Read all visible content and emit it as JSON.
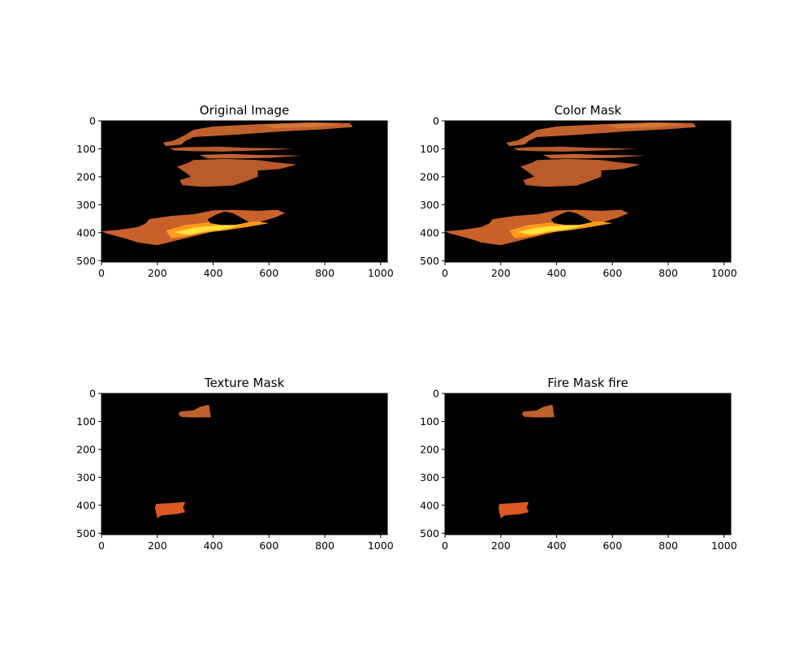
{
  "chart_data": [
    {
      "type": "image",
      "title": "Original Image",
      "xlim": [
        0,
        1024
      ],
      "ylim": [
        0,
        505
      ],
      "xticks": [
        0,
        200,
        400,
        600,
        800,
        1000
      ],
      "yticks": [
        0,
        100,
        200,
        300,
        400,
        500
      ],
      "regions": [
        {
          "pts": [
            [
              330,
              32
            ],
            [
              400,
              20
            ],
            [
              560,
              12
            ],
            [
              750,
              5
            ],
            [
              890,
              8
            ],
            [
              900,
              22
            ],
            [
              800,
              30
            ],
            [
              640,
              38
            ],
            [
              470,
              50
            ],
            [
              330,
              58
            ],
            [
              300,
              72
            ],
            [
              285,
              85
            ],
            [
              230,
              90
            ],
            [
              220,
              78
            ],
            [
              260,
              70
            ],
            [
              300,
              50
            ]
          ],
          "color": "#c0602c"
        },
        {
          "pts": [
            [
              580,
              14
            ],
            [
              760,
              8
            ],
            [
              860,
              12
            ],
            [
              760,
              22
            ],
            [
              620,
              26
            ]
          ],
          "color": "#d4783a"
        },
        {
          "pts": [
            [
              245,
              98
            ],
            [
              300,
              94
            ],
            [
              420,
              92
            ],
            [
              520,
              96
            ],
            [
              620,
              98
            ],
            [
              690,
              100
            ],
            [
              560,
              106
            ],
            [
              430,
              110
            ],
            [
              320,
              108
            ],
            [
              260,
              106
            ]
          ],
          "color": "#b85c2e"
        },
        {
          "pts": [
            [
              350,
              122
            ],
            [
              460,
              118
            ],
            [
              560,
              122
            ],
            [
              720,
              124
            ],
            [
              600,
              132
            ],
            [
              480,
              134
            ],
            [
              380,
              134
            ]
          ],
          "color": "#c16332"
        },
        {
          "pts": [
            [
              330,
              140
            ],
            [
              440,
              136
            ],
            [
              560,
              140
            ],
            [
              620,
              148
            ],
            [
              700,
              156
            ],
            [
              640,
              172
            ],
            [
              560,
              178
            ],
            [
              560,
              200
            ],
            [
              520,
              215
            ],
            [
              470,
              232
            ],
            [
              360,
              236
            ],
            [
              290,
              230
            ],
            [
              280,
              212
            ],
            [
              320,
              200
            ],
            [
              300,
              184
            ],
            [
              270,
              164
            ],
            [
              310,
              150
            ]
          ],
          "color": "#b85a2a"
        },
        {
          "pts": [
            [
              170,
              352
            ],
            [
              250,
              340
            ],
            [
              330,
              334
            ],
            [
              400,
              320
            ],
            [
              470,
              318
            ],
            [
              560,
              322
            ],
            [
              630,
              318
            ],
            [
              658,
              330
            ],
            [
              620,
              346
            ],
            [
              560,
              364
            ],
            [
              470,
              382
            ],
            [
              400,
              396
            ],
            [
              300,
              420
            ],
            [
              200,
              445
            ],
            [
              130,
              435
            ],
            [
              90,
              422
            ],
            [
              15,
              402
            ],
            [
              0,
              395
            ],
            [
              60,
              390
            ],
            [
              130,
              380
            ],
            [
              160,
              366
            ]
          ],
          "color": "#c8612a"
        },
        {
          "pts": [
            [
              230,
              392
            ],
            [
              300,
              372
            ],
            [
              400,
              362
            ],
            [
              470,
              364
            ],
            [
              560,
              360
            ],
            [
              600,
              366
            ],
            [
              520,
              380
            ],
            [
              440,
              392
            ],
            [
              370,
              400
            ],
            [
              300,
              414
            ],
            [
              250,
              420
            ]
          ],
          "color": "#ff9a1a"
        },
        {
          "pts": [
            [
              260,
              398
            ],
            [
              330,
              382
            ],
            [
              420,
              374
            ],
            [
              500,
              372
            ],
            [
              450,
              386
            ],
            [
              370,
              396
            ],
            [
              310,
              408
            ]
          ],
          "color": "#ffe23c"
        },
        {
          "pts": [
            [
              380,
              352
            ],
            [
              410,
              336
            ],
            [
              440,
              324
            ],
            [
              470,
              330
            ],
            [
              500,
              346
            ],
            [
              528,
              362
            ],
            [
              480,
              372
            ],
            [
              430,
              372
            ],
            [
              390,
              366
            ]
          ],
          "color": "#000000"
        },
        {
          "pts": [
            [
              380,
              418
            ],
            [
              420,
              412
            ],
            [
              440,
              420
            ],
            [
              400,
              428
            ]
          ],
          "color": "#000000"
        }
      ]
    },
    {
      "type": "image",
      "title": "Color Mask",
      "xlim": [
        0,
        1024
      ],
      "ylim": [
        0,
        505
      ],
      "xticks": [
        0,
        200,
        400,
        600,
        800,
        1000
      ],
      "yticks": [
        0,
        100,
        200,
        300,
        400,
        500
      ],
      "regions": [
        {
          "pts": [
            [
              330,
              32
            ],
            [
              400,
              20
            ],
            [
              560,
              12
            ],
            [
              750,
              5
            ],
            [
              890,
              8
            ],
            [
              900,
              22
            ],
            [
              800,
              30
            ],
            [
              640,
              38
            ],
            [
              470,
              50
            ],
            [
              330,
              58
            ],
            [
              300,
              72
            ],
            [
              285,
              85
            ],
            [
              230,
              90
            ],
            [
              220,
              78
            ],
            [
              260,
              70
            ],
            [
              300,
              50
            ]
          ],
          "color": "#c0602c"
        },
        {
          "pts": [
            [
              580,
              14
            ],
            [
              760,
              8
            ],
            [
              860,
              12
            ],
            [
              760,
              22
            ],
            [
              620,
              26
            ]
          ],
          "color": "#d4783a"
        },
        {
          "pts": [
            [
              245,
              98
            ],
            [
              300,
              94
            ],
            [
              420,
              92
            ],
            [
              520,
              96
            ],
            [
              620,
              98
            ],
            [
              690,
              100
            ],
            [
              560,
              106
            ],
            [
              430,
              110
            ],
            [
              320,
              108
            ],
            [
              260,
              106
            ]
          ],
          "color": "#b85c2e"
        },
        {
          "pts": [
            [
              350,
              122
            ],
            [
              460,
              118
            ],
            [
              560,
              122
            ],
            [
              720,
              124
            ],
            [
              600,
              132
            ],
            [
              480,
              134
            ],
            [
              380,
              134
            ]
          ],
          "color": "#c16332"
        },
        {
          "pts": [
            [
              330,
              140
            ],
            [
              440,
              136
            ],
            [
              560,
              140
            ],
            [
              620,
              148
            ],
            [
              700,
              156
            ],
            [
              640,
              172
            ],
            [
              560,
              178
            ],
            [
              560,
              200
            ],
            [
              520,
              215
            ],
            [
              470,
              232
            ],
            [
              360,
              236
            ],
            [
              290,
              230
            ],
            [
              280,
              212
            ],
            [
              320,
              200
            ],
            [
              300,
              184
            ],
            [
              270,
              164
            ],
            [
              310,
              150
            ]
          ],
          "color": "#b85a2a"
        },
        {
          "pts": [
            [
              170,
              352
            ],
            [
              250,
              340
            ],
            [
              330,
              334
            ],
            [
              400,
              320
            ],
            [
              470,
              318
            ],
            [
              560,
              322
            ],
            [
              630,
              318
            ],
            [
              658,
              330
            ],
            [
              620,
              346
            ],
            [
              560,
              364
            ],
            [
              470,
              382
            ],
            [
              400,
              396
            ],
            [
              300,
              420
            ],
            [
              200,
              445
            ],
            [
              130,
              435
            ],
            [
              90,
              422
            ],
            [
              15,
              402
            ],
            [
              0,
              395
            ],
            [
              60,
              390
            ],
            [
              130,
              380
            ],
            [
              160,
              366
            ]
          ],
          "color": "#c8612a"
        },
        {
          "pts": [
            [
              230,
              392
            ],
            [
              300,
              372
            ],
            [
              400,
              362
            ],
            [
              470,
              364
            ],
            [
              560,
              360
            ],
            [
              600,
              366
            ],
            [
              520,
              380
            ],
            [
              440,
              392
            ],
            [
              370,
              400
            ],
            [
              300,
              414
            ],
            [
              250,
              420
            ]
          ],
          "color": "#ff9a1a"
        },
        {
          "pts": [
            [
              260,
              398
            ],
            [
              330,
              382
            ],
            [
              420,
              374
            ],
            [
              500,
              372
            ],
            [
              450,
              386
            ],
            [
              370,
              396
            ],
            [
              310,
              408
            ]
          ],
          "color": "#ffe23c"
        },
        {
          "pts": [
            [
              380,
              352
            ],
            [
              410,
              336
            ],
            [
              440,
              324
            ],
            [
              470,
              330
            ],
            [
              500,
              346
            ],
            [
              528,
              362
            ],
            [
              480,
              372
            ],
            [
              430,
              372
            ],
            [
              390,
              366
            ]
          ],
          "color": "#000000"
        },
        {
          "pts": [
            [
              380,
              418
            ],
            [
              420,
              412
            ],
            [
              440,
              420
            ],
            [
              400,
              428
            ]
          ],
          "color": "#000000"
        }
      ]
    },
    {
      "type": "image",
      "title": "Texture Mask",
      "xlim": [
        0,
        1024
      ],
      "ylim": [
        0,
        505
      ],
      "xticks": [
        0,
        200,
        400,
        600,
        800,
        1000
      ],
      "yticks": [
        0,
        100,
        200,
        300,
        400,
        500
      ],
      "regions": [
        {
          "pts": [
            [
              280,
              65
            ],
            [
              330,
              60
            ],
            [
              352,
              48
            ],
            [
              385,
              40
            ],
            [
              392,
              85
            ],
            [
              330,
              86
            ],
            [
              285,
              84
            ],
            [
              276,
              75
            ]
          ],
          "color": "#c0602c"
        },
        {
          "pts": [
            [
              195,
              395
            ],
            [
              250,
              392
            ],
            [
              300,
              388
            ],
            [
              292,
              408
            ],
            [
              300,
              425
            ],
            [
              268,
              432
            ],
            [
              215,
              436
            ],
            [
              200,
              446
            ],
            [
              195,
              425
            ],
            [
              192,
              410
            ]
          ],
          "color": "#dc5a22"
        }
      ]
    },
    {
      "type": "image",
      "title": "Fire Mask fire",
      "xlim": [
        0,
        1024
      ],
      "ylim": [
        0,
        505
      ],
      "xticks": [
        0,
        200,
        400,
        600,
        800,
        1000
      ],
      "yticks": [
        0,
        100,
        200,
        300,
        400,
        500
      ],
      "regions": [
        {
          "pts": [
            [
              280,
              65
            ],
            [
              330,
              60
            ],
            [
              352,
              48
            ],
            [
              385,
              40
            ],
            [
              392,
              85
            ],
            [
              330,
              86
            ],
            [
              285,
              84
            ],
            [
              276,
              75
            ]
          ],
          "color": "#c0602c"
        },
        {
          "pts": [
            [
              195,
              395
            ],
            [
              250,
              392
            ],
            [
              300,
              388
            ],
            [
              292,
              408
            ],
            [
              300,
              425
            ],
            [
              268,
              432
            ],
            [
              215,
              436
            ],
            [
              200,
              446
            ],
            [
              195,
              425
            ],
            [
              192,
              410
            ]
          ],
          "color": "#dc5a22"
        }
      ]
    }
  ]
}
